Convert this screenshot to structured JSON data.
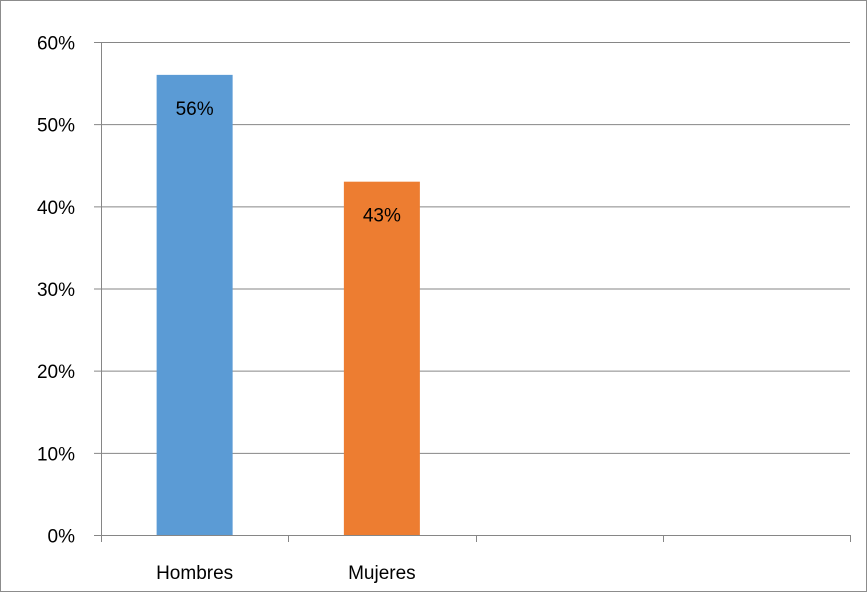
{
  "chart_data": {
    "type": "bar",
    "categories": [
      "Hombres",
      "Mujeres",
      "",
      ""
    ],
    "values": [
      56,
      43,
      null,
      null
    ],
    "data_labels": [
      "56%",
      "43%",
      "",
      ""
    ],
    "bar_colors": [
      "#5b9bd5",
      "#ed7d31"
    ],
    "y_ticks": [
      {
        "value": 0,
        "label": "0%"
      },
      {
        "value": 10,
        "label": "10%"
      },
      {
        "value": 20,
        "label": "20%"
      },
      {
        "value": 30,
        "label": "30%"
      },
      {
        "value": 40,
        "label": "40%"
      },
      {
        "value": 50,
        "label": "50%"
      },
      {
        "value": 60,
        "label": "60%"
      }
    ],
    "ylim": [
      0,
      60
    ],
    "y_unit": "%",
    "grid": true,
    "title": "",
    "xlabel": "",
    "ylabel": "",
    "legend": "none",
    "gridline_color": "#868686",
    "axis_color": "#868686",
    "border_color": "#8c8c8c"
  }
}
